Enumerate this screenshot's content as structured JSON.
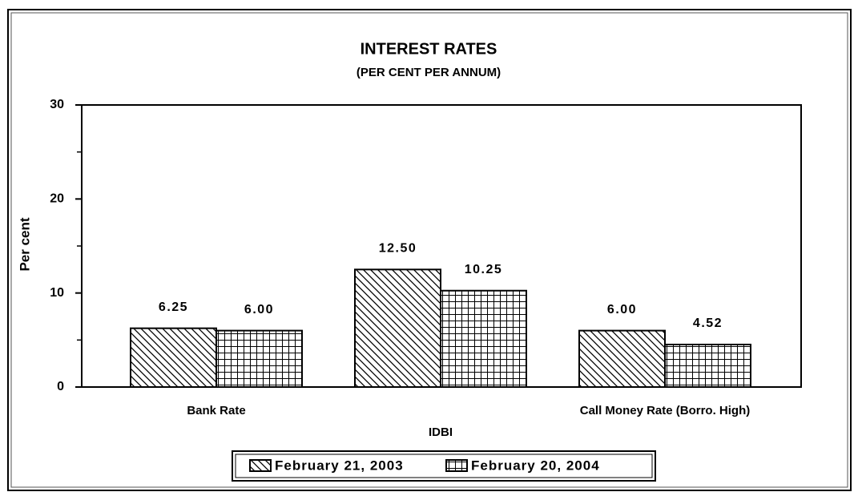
{
  "chart_data": {
    "type": "bar",
    "title": "INTEREST RATES",
    "subtitle": "(PER CENT PER ANNUM)",
    "y_label": "Per cent",
    "categories": [
      "Bank Rate",
      "IDBI",
      "Call Money Rate (Borro. High)"
    ],
    "series": [
      {
        "name": "February 21, 2003",
        "color": "#000000",
        "hatch": "diagonal",
        "values": [
          6.25,
          12.5,
          6.0
        ],
        "value_labels": [
          "6.25",
          "12.50",
          "6.00"
        ]
      },
      {
        "name": "February 20, 2004",
        "color": "#000000",
        "hatch": "grid",
        "values": [
          6.0,
          10.25,
          4.52
        ],
        "value_labels": [
          "6.00",
          "10.25",
          "4.52"
        ]
      }
    ],
    "ylim": [
      0,
      30
    ],
    "yticks": [
      0,
      10,
      20,
      30
    ],
    "yticks_minor": [
      5,
      15,
      25
    ],
    "legend": "bottom"
  }
}
